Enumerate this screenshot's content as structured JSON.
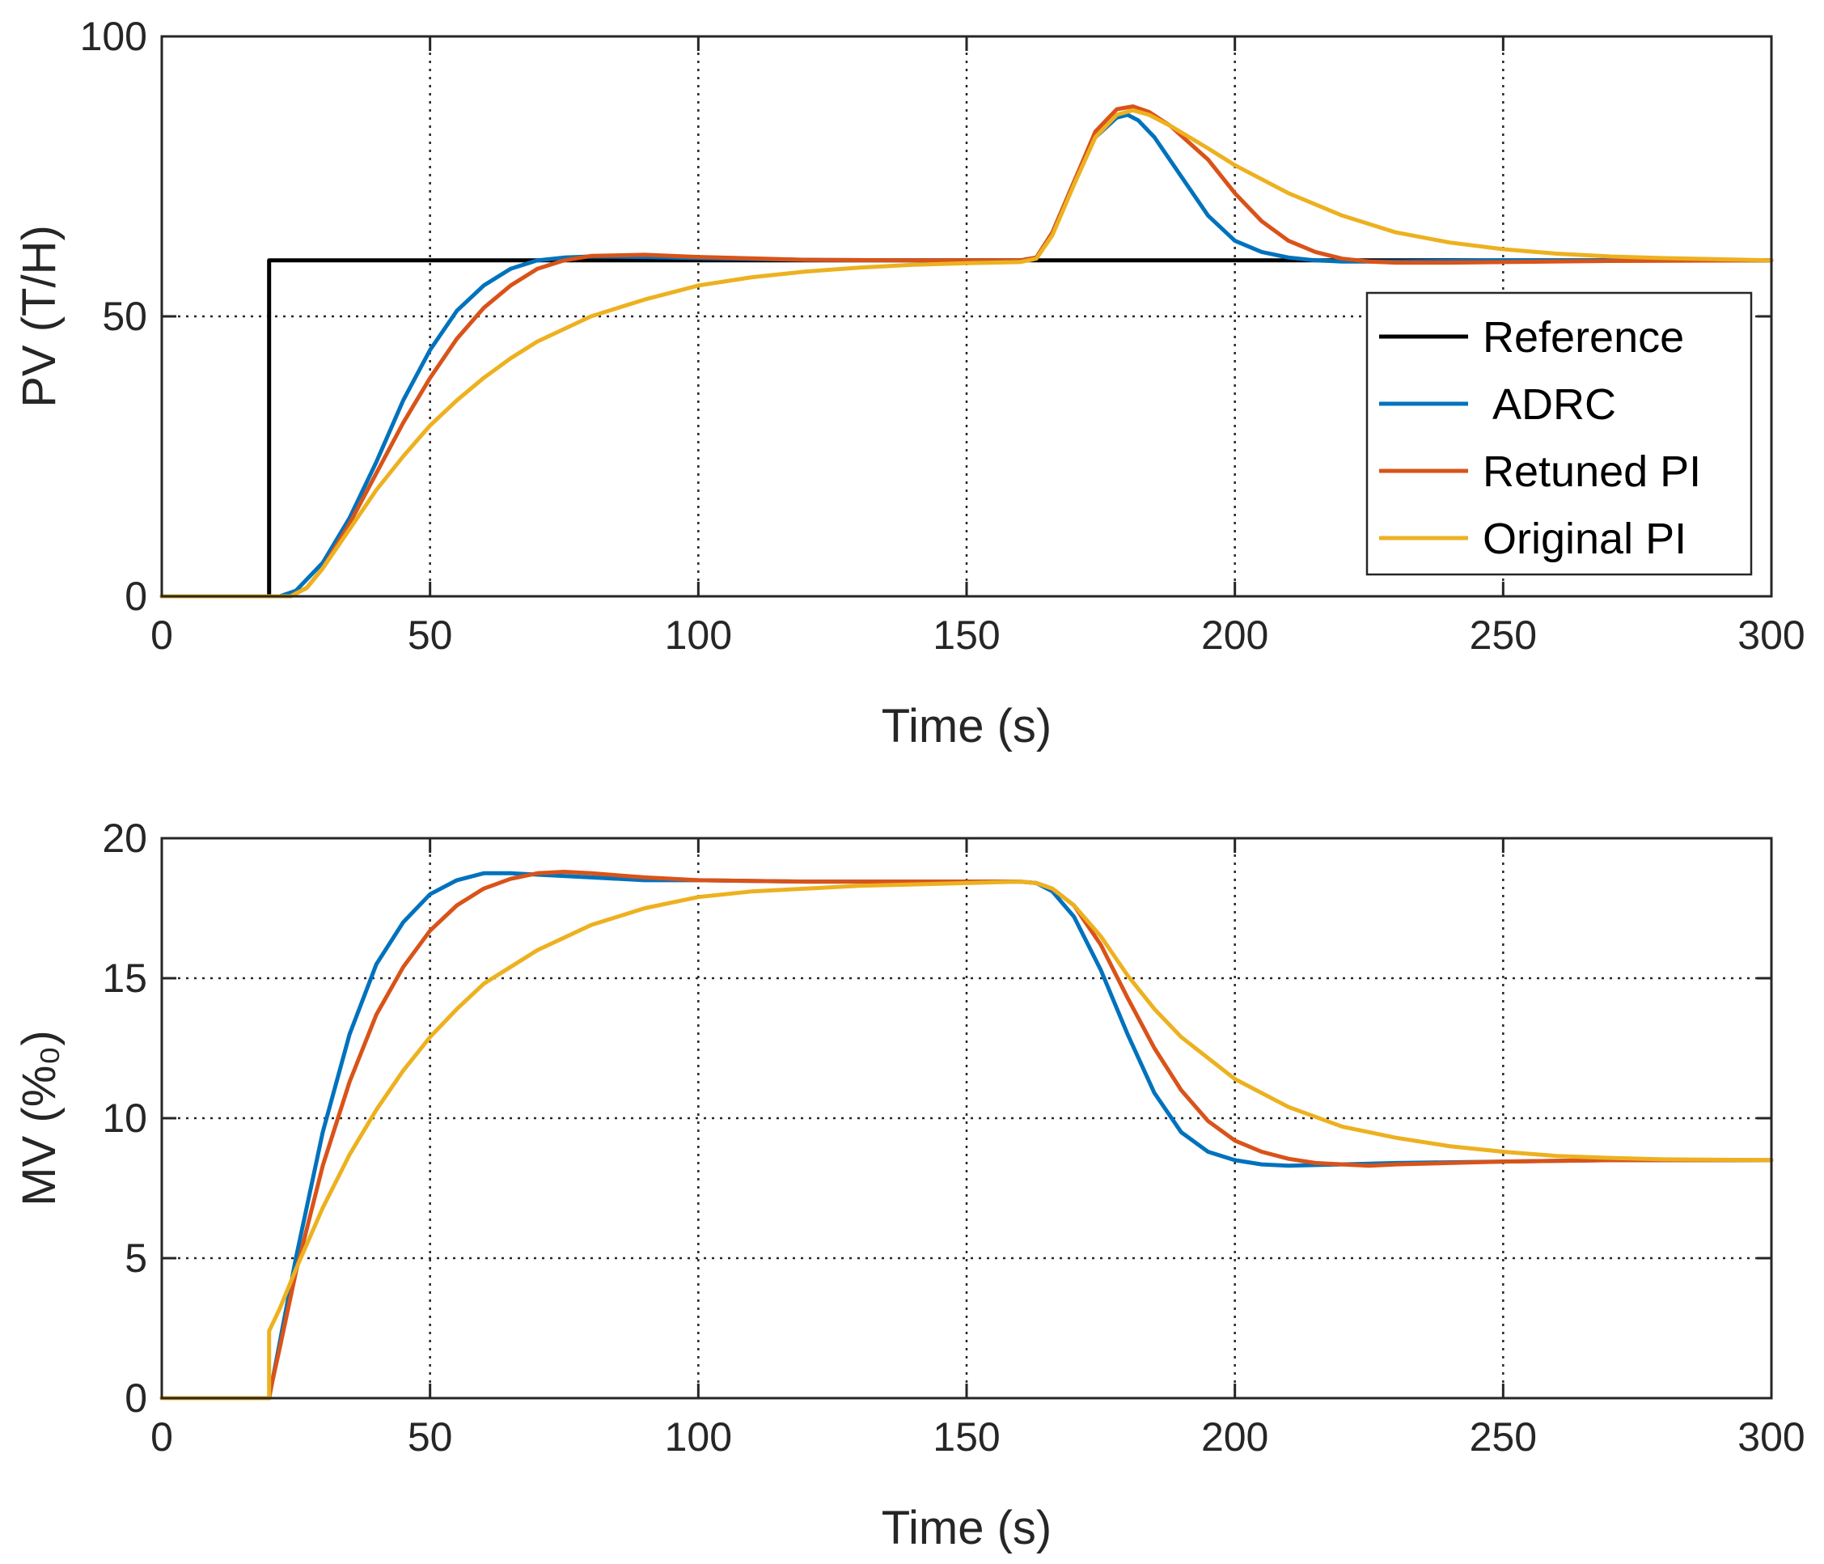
{
  "chart_data": [
    {
      "type": "line",
      "xlabel": "Time (s)",
      "ylabel": "PV (T/H)",
      "xlim": [
        0,
        300
      ],
      "ylim": [
        0,
        100
      ],
      "xticks": [
        0,
        50,
        100,
        150,
        200,
        250,
        300
      ],
      "yticks": [
        0,
        50,
        100
      ],
      "xtick_labels": [
        "0",
        "50",
        "100",
        "150",
        "200",
        "250",
        "300"
      ],
      "ytick_labels": [
        "0",
        "50",
        "100"
      ],
      "grid": true,
      "legend_position": "right",
      "series": [
        {
          "name": "Reference",
          "color": "#000000",
          "x": [
            0,
            20,
            20,
            300
          ],
          "y": [
            0,
            0,
            60,
            60
          ]
        },
        {
          "name": " ADRC",
          "color": "#0072BD",
          "x": [
            0,
            22,
            25,
            30,
            35,
            40,
            45,
            50,
            55,
            60,
            65,
            70,
            75,
            80,
            90,
            100,
            120,
            140,
            160,
            163,
            166,
            170,
            174,
            178,
            180,
            182,
            185,
            190,
            195,
            200,
            205,
            210,
            215,
            220,
            225,
            230,
            240,
            250,
            270,
            300
          ],
          "y": [
            0,
            0,
            1,
            6,
            14,
            24,
            35,
            44,
            51,
            55.5,
            58.5,
            60,
            60.5,
            60.7,
            60.6,
            60.4,
            60.1,
            60,
            60,
            60.5,
            65,
            74,
            82,
            85.5,
            86,
            85,
            82,
            75,
            68,
            63.5,
            61.5,
            60.5,
            60,
            59.8,
            59.8,
            59.8,
            59.9,
            60,
            60,
            60
          ]
        },
        {
          "name": "Retuned PI",
          "color": "#D95319",
          "x": [
            0,
            24,
            27,
            30,
            35,
            40,
            45,
            50,
            55,
            60,
            65,
            70,
            75,
            80,
            90,
            100,
            120,
            140,
            160,
            163,
            166,
            170,
            174,
            178,
            181,
            184,
            188,
            195,
            200,
            205,
            210,
            215,
            220,
            225,
            230,
            240,
            250,
            270,
            300
          ],
          "y": [
            0,
            0,
            1.5,
            5,
            13,
            22,
            31,
            39,
            46,
            51.5,
            55.5,
            58.5,
            60,
            60.8,
            61,
            60.6,
            60.1,
            60,
            60,
            60.5,
            65,
            74,
            83,
            87,
            87.5,
            86.5,
            84,
            78,
            72,
            67,
            63.5,
            61.5,
            60.3,
            59.8,
            59.6,
            59.6,
            59.7,
            59.9,
            60
          ]
        },
        {
          "name": "Original PI",
          "color": "#EDB120",
          "x": [
            0,
            24,
            27,
            30,
            35,
            40,
            45,
            50,
            55,
            60,
            65,
            70,
            80,
            90,
            100,
            110,
            120,
            130,
            140,
            150,
            160,
            163,
            166,
            170,
            174,
            178,
            181,
            184,
            188,
            195,
            200,
            210,
            220,
            230,
            240,
            250,
            260,
            270,
            280,
            300
          ],
          "y": [
            0,
            0,
            1.5,
            5,
            12,
            19,
            25,
            30.5,
            35,
            39,
            42.5,
            45.5,
            50,
            53,
            55.5,
            57,
            58,
            58.7,
            59.2,
            59.5,
            59.7,
            60.3,
            64.5,
            73.5,
            82,
            86,
            86.8,
            86,
            84,
            80,
            77,
            72,
            68,
            65,
            63.2,
            62,
            61.2,
            60.7,
            60.4,
            60
          ]
        }
      ]
    },
    {
      "type": "line",
      "xlabel": "Time (s)",
      "ylabel": "MV (%₀)",
      "xlim": [
        0,
        300
      ],
      "ylim": [
        0,
        20
      ],
      "xticks": [
        0,
        50,
        100,
        150,
        200,
        250,
        300
      ],
      "yticks": [
        0,
        5,
        10,
        15,
        20
      ],
      "xtick_labels": [
        "0",
        "50",
        "100",
        "150",
        "200",
        "250",
        "300"
      ],
      "ytick_labels": [
        "0",
        "5",
        "10",
        "15",
        "20"
      ],
      "grid": true,
      "series": [
        {
          "name": " ADRC",
          "color": "#0072BD",
          "x": [
            0,
            20,
            20.5,
            22,
            25,
            30,
            35,
            40,
            45,
            50,
            55,
            60,
            65,
            70,
            80,
            90,
            100,
            120,
            140,
            160,
            163,
            166,
            170,
            175,
            180,
            185,
            190,
            195,
            200,
            205,
            210,
            220,
            230,
            250,
            270,
            300
          ],
          "y": [
            0,
            0,
            0.5,
            2,
            5,
            9.5,
            13,
            15.5,
            17,
            18,
            18.5,
            18.75,
            18.75,
            18.7,
            18.6,
            18.5,
            18.5,
            18.45,
            18.45,
            18.45,
            18.4,
            18.1,
            17.2,
            15.3,
            13,
            10.9,
            9.5,
            8.8,
            8.5,
            8.35,
            8.3,
            8.35,
            8.4,
            8.45,
            8.5,
            8.5
          ]
        },
        {
          "name": "Retuned PI",
          "color": "#D95319",
          "x": [
            0,
            20,
            20.5,
            22,
            25,
            30,
            35,
            40,
            45,
            50,
            55,
            60,
            65,
            70,
            75,
            80,
            90,
            100,
            120,
            140,
            160,
            163,
            166,
            170,
            175,
            180,
            185,
            190,
            195,
            200,
            205,
            210,
            215,
            220,
            225,
            230,
            240,
            250,
            270,
            300
          ],
          "y": [
            0,
            0,
            0.5,
            1.8,
            4.5,
            8.3,
            11.3,
            13.7,
            15.4,
            16.7,
            17.6,
            18.2,
            18.55,
            18.75,
            18.8,
            18.75,
            18.6,
            18.5,
            18.45,
            18.45,
            18.45,
            18.4,
            18.2,
            17.6,
            16.2,
            14.3,
            12.5,
            11,
            9.9,
            9.2,
            8.8,
            8.55,
            8.4,
            8.35,
            8.3,
            8.35,
            8.4,
            8.45,
            8.5,
            8.5
          ]
        },
        {
          "name": "Original PI",
          "color": "#EDB120",
          "x": [
            0,
            20,
            20,
            22,
            25,
            30,
            35,
            40,
            45,
            50,
            55,
            60,
            70,
            80,
            90,
            100,
            110,
            120,
            130,
            140,
            150,
            160,
            163,
            166,
            170,
            175,
            180,
            185,
            190,
            200,
            210,
            220,
            230,
            240,
            250,
            260,
            270,
            280,
            300
          ],
          "y": [
            0,
            0,
            2.4,
            3.2,
            4.6,
            6.8,
            8.7,
            10.3,
            11.7,
            12.9,
            13.9,
            14.8,
            16,
            16.9,
            17.5,
            17.9,
            18.1,
            18.2,
            18.3,
            18.35,
            18.4,
            18.45,
            18.4,
            18.2,
            17.6,
            16.5,
            15.1,
            13.9,
            12.9,
            11.4,
            10.4,
            9.7,
            9.3,
            9,
            8.8,
            8.65,
            8.58,
            8.53,
            8.5
          ]
        }
      ]
    }
  ]
}
